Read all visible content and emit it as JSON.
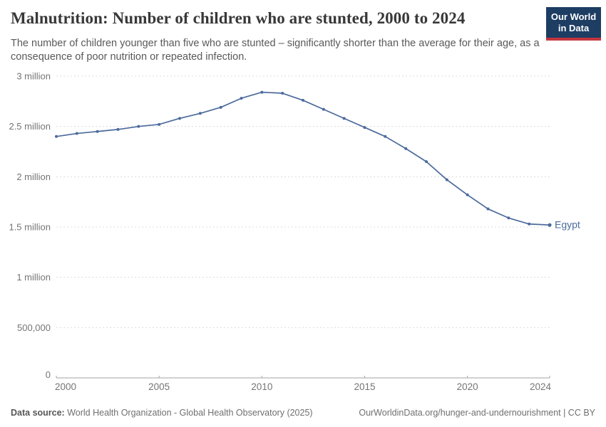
{
  "header": {
    "title": "Malnutrition: Number of children who are stunted, 2000 to 2024",
    "subtitle": "The number of children younger than five who are stunted – significantly shorter than the average for their age, as a consequence of poor nutrition or repeated infection.",
    "logo_line1": "Our World",
    "logo_line2": "in Data"
  },
  "colors": {
    "series_blue": "#4c6a9d",
    "logo_navy": "#1d3d63",
    "logo_red": "#c5353f",
    "gridline": "#dcdcdc",
    "axis": "#a3a3a3",
    "tick_label": "#757575"
  },
  "chart_data": {
    "type": "line",
    "title": "Malnutrition: Number of children who are stunted, 2000 to 2024",
    "xlabel": "",
    "ylabel": "",
    "xlim": [
      2000,
      2024
    ],
    "ylim": [
      0,
      3000000
    ],
    "grid": "horizontal-dashed",
    "legend_position": "end-of-line-label",
    "x_ticks": [
      2000,
      2005,
      2010,
      2015,
      2020,
      2024
    ],
    "y_ticks": [
      {
        "value": 0,
        "label": "0"
      },
      {
        "value": 500000,
        "label": "500,000"
      },
      {
        "value": 1000000,
        "label": "1 million"
      },
      {
        "value": 1500000,
        "label": "1.5 million"
      },
      {
        "value": 2000000,
        "label": "2 million"
      },
      {
        "value": 2500000,
        "label": "2.5 million"
      },
      {
        "value": 3000000,
        "label": "3 million"
      }
    ],
    "series": [
      {
        "name": "Egypt",
        "color": "#4c6a9d",
        "x": [
          2000,
          2001,
          2002,
          2003,
          2004,
          2005,
          2006,
          2007,
          2008,
          2009,
          2010,
          2011,
          2012,
          2013,
          2014,
          2015,
          2016,
          2017,
          2018,
          2019,
          2020,
          2021,
          2022,
          2023,
          2024
        ],
        "values": [
          2400000,
          2430000,
          2450000,
          2470000,
          2500000,
          2520000,
          2580000,
          2630000,
          2690000,
          2780000,
          2840000,
          2830000,
          2760000,
          2670000,
          2580000,
          2490000,
          2400000,
          2280000,
          2150000,
          1970000,
          1820000,
          1680000,
          1590000,
          1530000,
          1520000
        ]
      }
    ]
  },
  "footer": {
    "data_source_label": "Data source:",
    "data_source_text": " World Health Organization - Global Health Observatory (2025)",
    "attribution": "OurWorldinData.org/hunger-and-undernourishment | CC BY"
  }
}
